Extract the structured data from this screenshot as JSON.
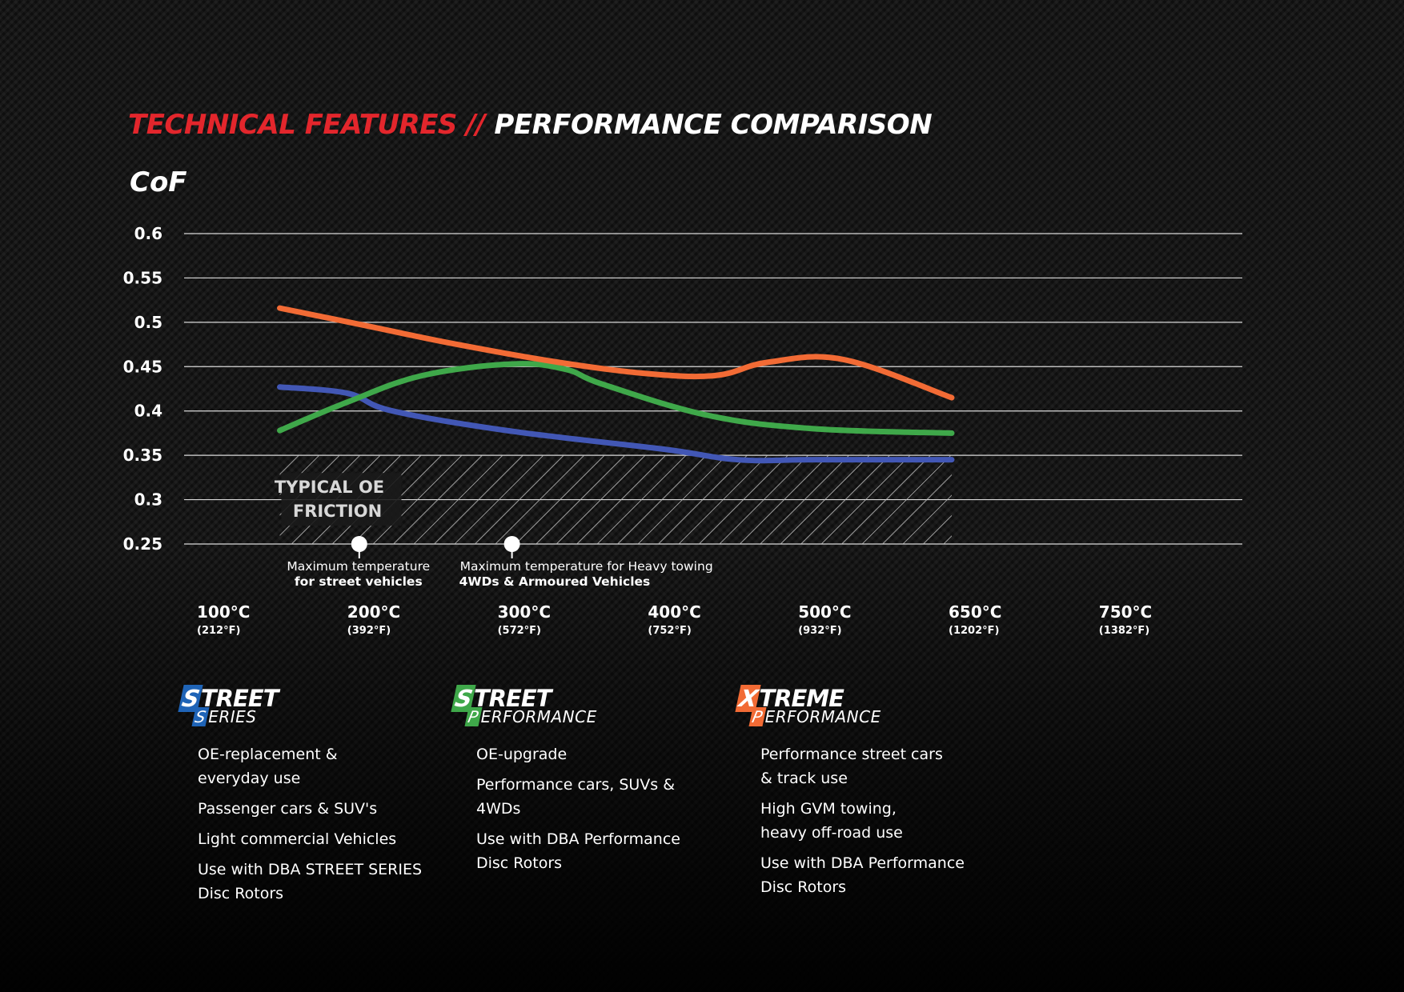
{
  "heading": {
    "red": "TECHNICAL FEATURES //",
    "white": "PERFORMANCE COMPARISON"
  },
  "colors": {
    "accent_red": "#e3262c",
    "street_series": "#4257b5",
    "street_performance": "#3fa84a",
    "xtreme_performance": "#f26b35"
  },
  "chart_data": {
    "type": "line",
    "ylabel": "CoF",
    "ylim": [
      0.25,
      0.6
    ],
    "yticks": [
      "0.6",
      "0.55",
      "0.5",
      "0.45",
      "0.4",
      "0.35",
      "0.3",
      "0.25"
    ],
    "grid": true,
    "x_ticks": [
      {
        "c": "100°C",
        "f": "(212°F)"
      },
      {
        "c": "200°C",
        "f": "(392°F)"
      },
      {
        "c": "300°C",
        "f": "(572°F)"
      },
      {
        "c": "400°C",
        "f": "(752°F)"
      },
      {
        "c": "500°C",
        "f": "(932°F)"
      },
      {
        "c": "650°C",
        "f": "(1202°F)"
      },
      {
        "c": "750°C",
        "f": "(1382°F)"
      }
    ],
    "series": [
      {
        "key": "street_series",
        "color": "#4257b5",
        "points": [
          [
            0.45,
            0.427
          ],
          [
            0.9,
            0.42
          ],
          [
            1.2,
            0.4
          ],
          [
            2.0,
            0.377
          ],
          [
            3.0,
            0.357
          ],
          [
            3.5,
            0.345
          ],
          [
            4.0,
            0.345
          ],
          [
            4.92,
            0.345
          ]
        ]
      },
      {
        "key": "street_performance",
        "color": "#3fa84a",
        "points": [
          [
            0.45,
            0.378
          ],
          [
            0.9,
            0.41
          ],
          [
            1.4,
            0.44
          ],
          [
            2.0,
            0.453
          ],
          [
            2.35,
            0.447
          ],
          [
            2.6,
            0.43
          ],
          [
            3.3,
            0.395
          ],
          [
            4.0,
            0.38
          ],
          [
            4.92,
            0.375
          ]
        ]
      },
      {
        "key": "xtreme_performance",
        "color": "#f26b35",
        "points": [
          [
            0.45,
            0.516
          ],
          [
            1.0,
            0.497
          ],
          [
            1.6,
            0.476
          ],
          [
            2.3,
            0.455
          ],
          [
            2.9,
            0.442
          ],
          [
            3.35,
            0.44
          ],
          [
            3.7,
            0.455
          ],
          [
            4.2,
            0.458
          ],
          [
            4.92,
            0.415
          ]
        ]
      }
    ],
    "oe_band": {
      "label_line1": "TYPICAL OE",
      "label_line2": "FRICTION",
      "x_start": 0.45,
      "x_end": 4.92,
      "y_min": 0.25,
      "y_max": 0.35
    },
    "annotations": [
      {
        "x": 1.0,
        "y": 0.25,
        "line1": "Maximum temperature",
        "line2": "for street vehicles"
      },
      {
        "x": 2.0,
        "y": 0.25,
        "line1": "Maximum temperature for Heavy towing",
        "line2": "4WDs & Armoured Vehicles"
      }
    ]
  },
  "products": [
    {
      "logo_cap": "S",
      "logo_top": "TREET",
      "logo_bottom_cap": "S",
      "logo_bottom": "ERIES",
      "color": "#1f64b7",
      "features": [
        "OE-replacement &\neveryday use",
        "Passenger cars & SUV's",
        "Light commercial Vehicles",
        "Use with DBA STREET SERIES\nDisc Rotors"
      ]
    },
    {
      "logo_cap": "S",
      "logo_top": "TREET",
      "logo_bottom_cap": "P",
      "logo_bottom": "ERFORMANCE",
      "color": "#3fa84a",
      "features": [
        "OE-upgrade",
        "Performance cars, SUVs &\n4WDs",
        "Use with DBA Performance\nDisc Rotors"
      ]
    },
    {
      "logo_cap": "X",
      "logo_top": "TREME",
      "logo_bottom_cap": "P",
      "logo_bottom": "ERFORMANCE",
      "color": "#f26b35",
      "features": [
        "Performance street cars\n& track use",
        "High GVM towing,\nheavy off-road use",
        "Use with DBA Performance\nDisc Rotors"
      ]
    }
  ]
}
